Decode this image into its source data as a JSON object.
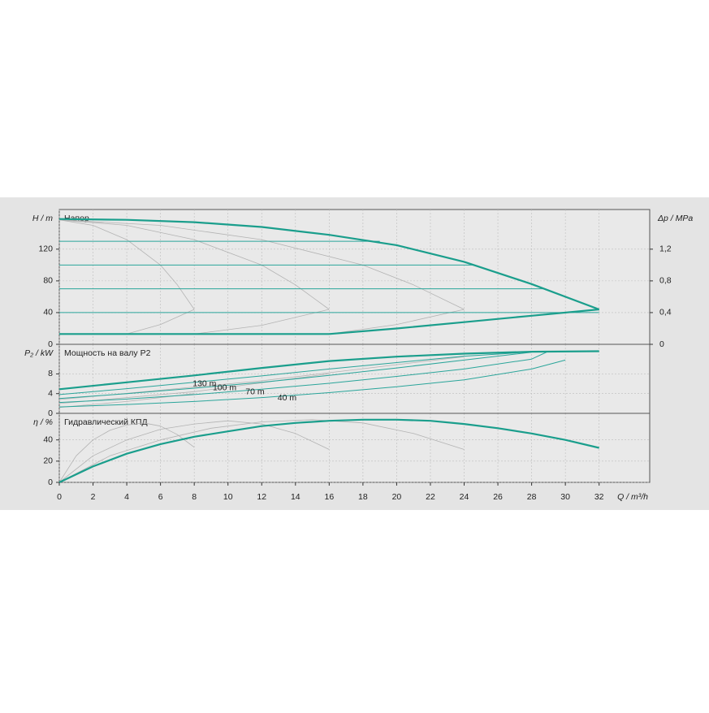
{
  "chart_data": [
    {
      "type": "line",
      "title": "Напор",
      "ylabel": "H / m",
      "y2label": "Δp / MPa",
      "ylim": [
        0,
        170
      ],
      "yticks": [
        0,
        40,
        80,
        120
      ],
      "y2lim": [
        0,
        1.7
      ],
      "y2ticks": [
        0,
        {
          "value": 0.4,
          "label": "0,4"
        },
        {
          "value": 0.8,
          "label": "0,8"
        },
        {
          "value": 1.2,
          "label": "1,2"
        }
      ],
      "grid": true,
      "series": [
        {
          "color": "#b3b3b3",
          "width": 0.8,
          "x": [
            0,
            2,
            4,
            6,
            7,
            8
          ],
          "values": [
            157,
            150,
            132,
            100,
            75,
            44
          ]
        },
        {
          "color": "#b3b3b3",
          "width": 0.8,
          "x": [
            0,
            4,
            8,
            12,
            14,
            16
          ],
          "values": [
            157,
            150,
            132,
            100,
            75,
            44
          ]
        },
        {
          "color": "#b3b3b3",
          "width": 0.8,
          "x": [
            0,
            6,
            12,
            18,
            21,
            24
          ],
          "values": [
            157,
            150,
            132,
            100,
            75,
            44
          ]
        },
        {
          "color": "#b3b3b3",
          "width": 0.8,
          "x": [
            4,
            6,
            8
          ],
          "values": [
            13,
            25,
            44
          ]
        },
        {
          "color": "#b3b3b3",
          "width": 0.8,
          "x": [
            8,
            12,
            16
          ],
          "values": [
            13,
            24,
            44
          ]
        },
        {
          "color": "#b3b3b3",
          "width": 0.8,
          "x": [
            16,
            20,
            24
          ],
          "values": [
            13,
            25,
            44
          ]
        },
        {
          "color": "#2aa59a",
          "width": 1,
          "x": [
            0,
            19
          ],
          "values": [
            130,
            130
          ]
        },
        {
          "color": "#2aa59a",
          "width": 1,
          "x": [
            0,
            24.5
          ],
          "values": [
            100,
            100
          ]
        },
        {
          "color": "#2aa59a",
          "width": 1,
          "x": [
            0,
            28.7
          ],
          "values": [
            70,
            70
          ]
        },
        {
          "color": "#2aa59a",
          "width": 1,
          "x": [
            0,
            32
          ],
          "values": [
            40,
            40
          ]
        },
        {
          "color": "#1a9e8c",
          "width": 2.2,
          "x": [
            0,
            4,
            8,
            12,
            16,
            20,
            24,
            28,
            32
          ],
          "values": [
            158,
            157,
            154,
            148,
            138,
            125,
            104,
            76,
            44
          ]
        },
        {
          "color": "#1a9e8c",
          "width": 2.2,
          "x": [
            0,
            16,
            20,
            24,
            28,
            32
          ],
          "values": [
            13,
            13,
            20,
            28,
            36,
            44
          ]
        }
      ]
    },
    {
      "type": "line",
      "title": "Мощность на валу P2",
      "ylabel": "P₂ / kW",
      "ylim": [
        0,
        14
      ],
      "yticks": [
        0,
        4,
        8
      ],
      "grid": true,
      "series": [
        {
          "color": "#b3b3b3",
          "width": 0.8,
          "x": [
            0,
            4,
            8
          ],
          "values": [
            1.2,
            2.4,
            4
          ]
        },
        {
          "color": "#b3b3b3",
          "width": 0.8,
          "x": [
            0,
            8,
            16
          ],
          "values": [
            2,
            4.4,
            8
          ]
        },
        {
          "color": "#b3b3b3",
          "width": 0.8,
          "x": [
            0,
            12,
            24
          ],
          "values": [
            2.8,
            6.6,
            11.5
          ]
        },
        {
          "name": "130 m",
          "color": "#2aa59a",
          "width": 1,
          "x": [
            0,
            4,
            8,
            12,
            16,
            20,
            24,
            28.7
          ],
          "values": [
            3.8,
            5,
            6.3,
            7.6,
            9,
            10.3,
            11.6,
            12.6
          ]
        },
        {
          "name": "100 m",
          "color": "#2aa59a",
          "width": 1,
          "x": [
            0,
            4,
            8,
            12,
            16,
            20,
            24,
            28
          ],
          "values": [
            3,
            4,
            5.1,
            6.3,
            7.7,
            9.2,
            10.8,
            12.4
          ]
        },
        {
          "name": "70 m",
          "color": "#2aa59a",
          "width": 1,
          "x": [
            0,
            4,
            8,
            12,
            16,
            20,
            24,
            28,
            29
          ],
          "values": [
            2.2,
            2.9,
            3.8,
            4.9,
            6.1,
            7.5,
            9,
            11,
            12.6
          ]
        },
        {
          "name": "40 m",
          "color": "#2aa59a",
          "width": 1,
          "x": [
            0,
            4,
            8,
            12,
            16,
            20,
            24,
            28,
            30
          ],
          "values": [
            1.3,
            1.8,
            2.4,
            3.2,
            4.2,
            5.4,
            6.8,
            9,
            10.8
          ]
        },
        {
          "color": "#1a9e8c",
          "width": 2.2,
          "x": [
            0,
            4,
            8,
            12,
            16,
            20,
            24,
            28,
            32
          ],
          "values": [
            4.9,
            6.3,
            7.7,
            9.2,
            10.6,
            11.5,
            12.1,
            12.5,
            12.6
          ]
        }
      ]
    },
    {
      "type": "line",
      "title": "Гидравлический КПД",
      "ylabel": "η / %",
      "xlabel": "Q / m³/h",
      "xlim": [
        0,
        35
      ],
      "xticks": [
        0,
        2,
        4,
        6,
        8,
        10,
        12,
        14,
        16,
        18,
        20,
        22,
        24,
        26,
        28,
        30,
        32
      ],
      "ylim": [
        0,
        65
      ],
      "yticks": [
        0,
        20,
        40
      ],
      "grid": true,
      "series": [
        {
          "color": "#b3b3b3",
          "width": 0.8,
          "x": [
            0,
            1,
            2,
            3,
            4,
            5,
            6,
            7,
            8
          ],
          "values": [
            0,
            25,
            40,
            49,
            54,
            56,
            53,
            45,
            33
          ]
        },
        {
          "color": "#b3b3b3",
          "width": 0.8,
          "x": [
            0,
            2,
            4,
            6,
            8,
            10,
            12,
            14,
            16
          ],
          "values": [
            0,
            25,
            40,
            50,
            55,
            58,
            55,
            46,
            31
          ]
        },
        {
          "color": "#b3b3b3",
          "width": 0.8,
          "x": [
            0,
            3,
            6,
            9,
            12,
            15,
            18,
            21,
            24
          ],
          "values": [
            0,
            25,
            40,
            51,
            57,
            59,
            56,
            46,
            31
          ]
        },
        {
          "color": "#1a9e8c",
          "width": 2.2,
          "x": [
            0,
            2,
            4,
            6,
            8,
            10,
            12,
            14,
            16,
            18,
            20,
            22,
            24,
            26,
            28,
            30,
            32
          ],
          "values": [
            0,
            15,
            27,
            36,
            43,
            48,
            53,
            56,
            58,
            59,
            59,
            58,
            55,
            51,
            46,
            40,
            32.5
          ]
        }
      ]
    }
  ]
}
